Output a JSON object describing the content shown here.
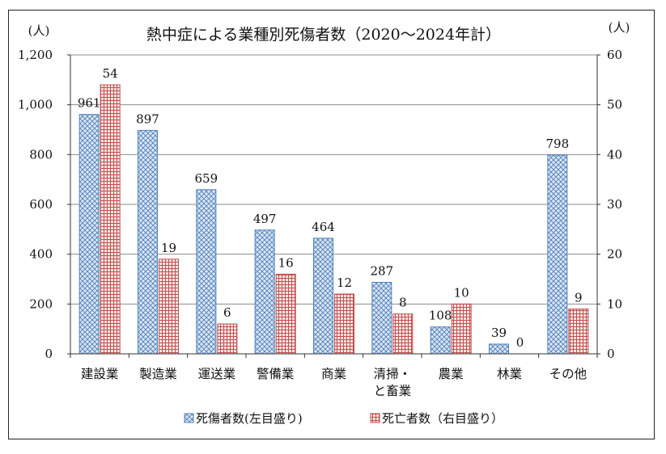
{
  "chart_data": {
    "type": "bar",
    "title": "熱中症による業種別死傷者数（2020～2024年計）",
    "y_left_unit": "(人)",
    "y_right_unit": "(人)",
    "categories": [
      {
        "lines": [
          "建設業"
        ]
      },
      {
        "lines": [
          "製造業"
        ]
      },
      {
        "lines": [
          "運送業"
        ]
      },
      {
        "lines": [
          "警備業"
        ]
      },
      {
        "lines": [
          "商業"
        ]
      },
      {
        "lines": [
          "清掃・",
          "と畜業"
        ]
      },
      {
        "lines": [
          "農業"
        ]
      },
      {
        "lines": [
          "林業"
        ]
      },
      {
        "lines": [
          "その他"
        ]
      }
    ],
    "series": [
      {
        "name": "死傷者数(左目盛り)",
        "axis": "left",
        "values": [
          961,
          897,
          659,
          497,
          464,
          287,
          108,
          39,
          798
        ],
        "color": "#4f81bd",
        "fill": "#dbe5f1",
        "pattern": "crosshatch"
      },
      {
        "name": "死亡者数（右目盛り）",
        "axis": "right",
        "values": [
          54,
          19,
          6,
          16,
          12,
          8,
          10,
          0,
          9
        ],
        "color": "#c0504d",
        "fill": "#f2dcdb",
        "pattern": "grid"
      }
    ],
    "ylim_left": [
      0,
      1200
    ],
    "ylim_right": [
      0,
      60
    ],
    "left_ticks": [
      "0",
      "200",
      "400",
      "600",
      "800",
      "1,000",
      "1,200"
    ],
    "right_ticks": [
      "0",
      "10",
      "20",
      "30",
      "40",
      "50",
      "60"
    ],
    "grid": true,
    "legend_position": "bottom"
  }
}
